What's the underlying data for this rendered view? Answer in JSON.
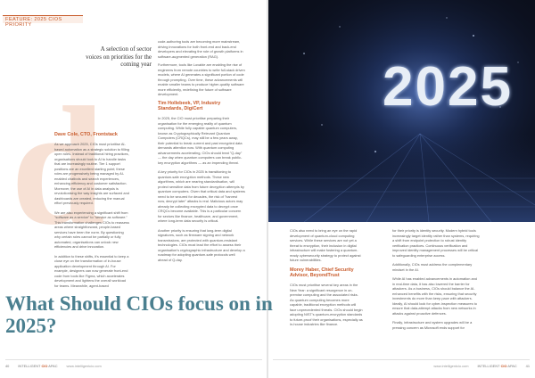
{
  "section_tag": "FEATURE: 2025 CIOS PRIORITY",
  "kicker": "A selection of sector voices on priorities for the coming year",
  "headline": "What Should CIOs focus on in 2025?",
  "hero": {
    "year": "2025"
  },
  "col1": {
    "heading": "Dave Cole, CTO, Frontstack",
    "paras": [
      "As we approach 2025, CIOs must prioritise AI-based automation as a strategic solution to filling open roles. Instead of traditional hiring practices, organisations should look to AI to handle tasks that are increasingly routine. Tier 1 support positions are an excellent starting point; these roles are progressively being managed by AI-enabled chatbots and search experiences, enhancing efficiency and customer satisfaction. Moreover, the use of AI in data analysis is revolutionising the way insights are surfaced and dashboards are created, reducing the manual effort previously required.",
      "We are also experiencing a significant shift from \"software as a service\" to \"service as software.\" This transformation challenges CIOs to reassess areas where straightforward, people-based services have been the norm. By questioning why certain roles cannot be partially or fully automated, organisations can unlock new efficiencies and drive innovation.",
      "In addition to these shifts, it's essential to keep a close eye on the transformation of in-house application development through AI. For example, designers can now generate front-end code from tools like Figma, which accelerates development and lightens the overall workload for teams. Meanwhile, agent-based"
    ]
  },
  "col2": {
    "top_paras": [
      "code-authoring tools are becoming more mainstream, driving innovations for both front-end and back-end developers and elevating the role of growth platforms in software-augmented generation (RAG).",
      "Furthermore, tools like Lovable are enabling the rise of engineers from remote countries to write full-stack driven models, where AI generates a significant portion of code through prompting. Over time, these advancements will enable smaller teams to produce higher-quality software more efficiently, redefining the future of software development."
    ],
    "heading": "Tim Hollebeek, VP, Industry Standards, DigiCert",
    "paras": [
      "In 2025, the CIO must prioritise preparing their organisation for the emerging reality of quantum computing. While fully capable quantum computers, known as Cryptographically Relevant Quantum Computers (CRQCs), may still be a few years away, their potential to break current and past encrypted data demands attention now. With quantum computing advancements accelerating, CIOs should treat \"Q-day\" — the day when quantum computers can break public-key encryption algorithms — as an impending threat.",
      "A key priority for CIOs in 2025 is transitioning to quantum-safe encryption methods. These new algorithms, which are nearing standardisation, will protect sensitive data from future decryption attempts by quantum computers. Given that critical data and systems need to be secured for decades, the risk of \"harvest now, decrypt later\" attacks is real. Malicious actors may already be collecting encrypted data to decrypt once CRQCs become available. This is a particular concern for sectors like finance, healthcare, and government, where long-term data security is critical.",
      "Another priority is ensuring that long-term digital signatures, such as firmware signing and network transmissions, are protected with quantum-resistant technologies. CIOs must lead the effort to assess their organisation's cryptographic infrastructure and develop a roadmap for adopting quantum-safe protocols well ahead of Q-day."
    ]
  },
  "col3": {
    "top_paras": [
      "CIOs also need to bring an eye on the rapid development of quantum-cloud computing services. While these services are not yet a threat to encryption, their inclusion in digital infrastructure will make fostering a quantum-ready cybersecurity strategy to protect against future vulnerabilities."
    ],
    "heading": "Morey Haber, Chief Security Advisor, BeyondTrust",
    "paras": [
      "CIOs must prioritise several key areas in the New Year: a significant resurgence in on-premise computing and the associated risks. As quantum computing becomes more capable, traditional encryption methods will face unprecedented threats. CIOs should begin adopting NIST's quantum-encryption standards to future-proof their organisations, especially as in-house industries like finance."
    ]
  },
  "col4": {
    "top_paras": [
      "for their priority is identity security. Modern hybrid tools increasingly target identity rather than systems, requiring a shift from endpoint protection to robust identity verification practices. Continuous verification and improved identity management processes will be critical to safeguarding enterprise access.",
      "Additionally, CIOs must address the complementary mindset in the AI.",
      "While AI has enabled advancements in automation and in real-time data, it has also lowered the barrier for attackers. As a business, CIOs should balance the AI-enhanced benefits with the risks, ensuring that security investments do more than keep pace with attackers. Ideally, AI should look for cyber-inspection measures to ensure that data-attempt attacks from new networks in attacks against proactive defences.",
      "Finally, infrastructure and system upgrades will be a pressing concern as Microsoft ends support for"
    ]
  },
  "footer": {
    "left_page": "40",
    "right_page": "41",
    "publication": "INTELLIGENT",
    "publication_accent": "CIO",
    "edition": "APAC",
    "url": "www.intelligentcio.com"
  }
}
